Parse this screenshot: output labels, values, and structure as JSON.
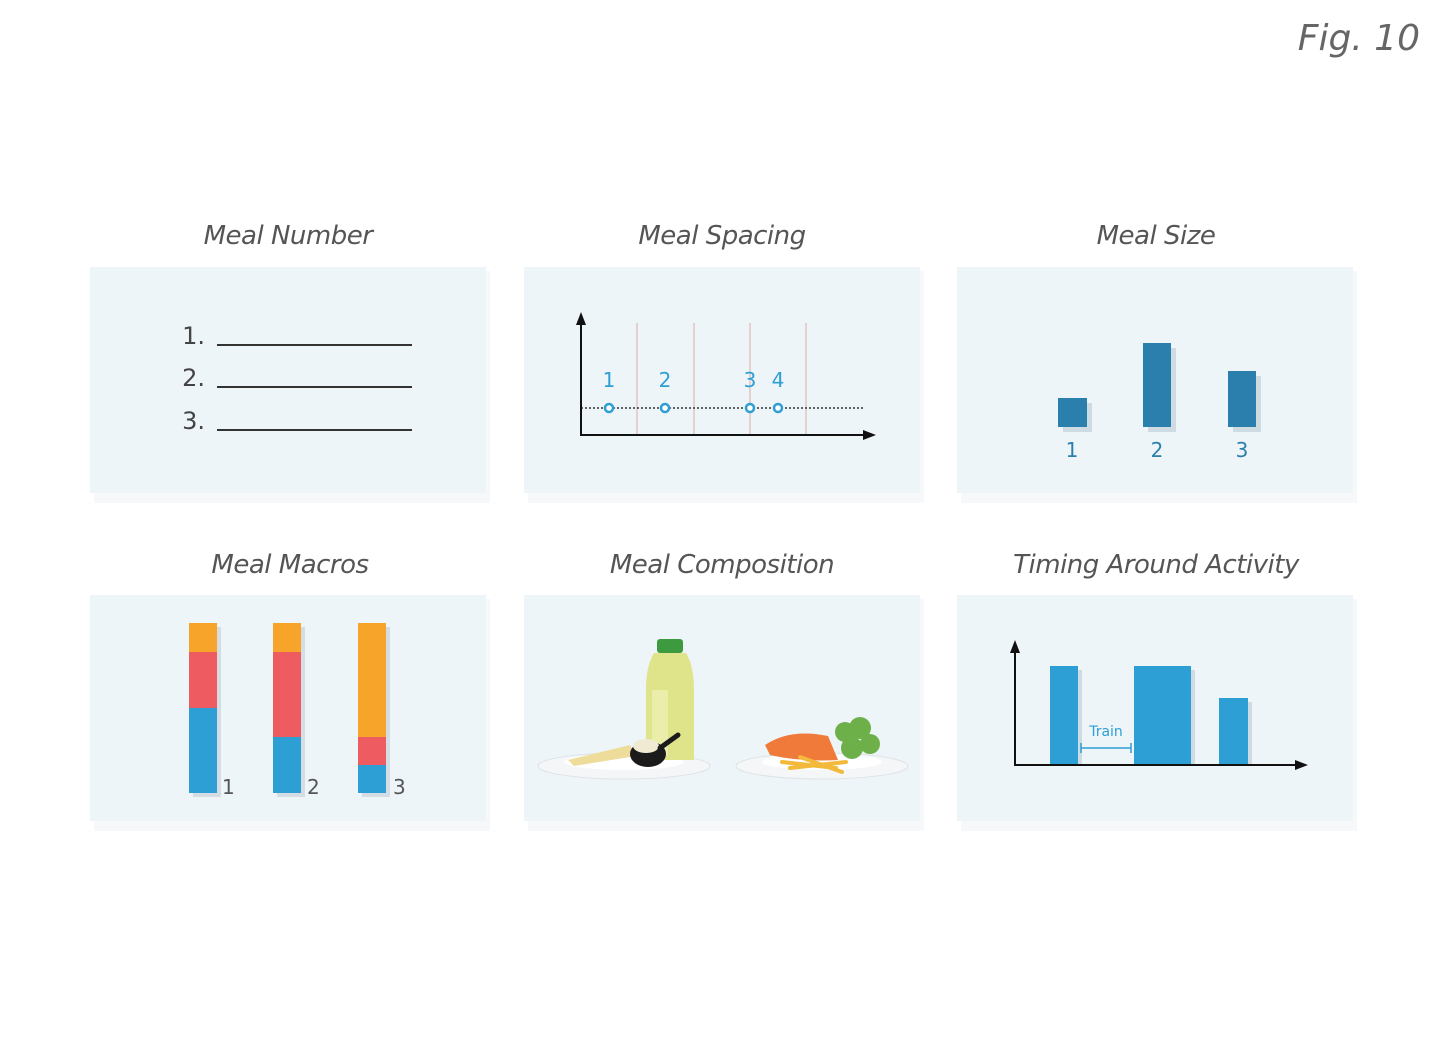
{
  "figure_label": "Fig. 10",
  "panels": [
    {
      "title": "Meal Number",
      "labels": [
        "1.",
        "2.",
        "3."
      ]
    },
    {
      "title": "Meal Spacing",
      "labels": [
        "1",
        "2",
        "3",
        "4"
      ]
    },
    {
      "title": "Meal Size",
      "labels": [
        "1",
        "2",
        "3"
      ]
    },
    {
      "title": "Meal Macros",
      "labels": [
        "1",
        "2",
        "3"
      ]
    },
    {
      "title": "Meal Composition"
    },
    {
      "title": "Timing Around Activity",
      "labels": [
        "Train"
      ]
    }
  ]
}
